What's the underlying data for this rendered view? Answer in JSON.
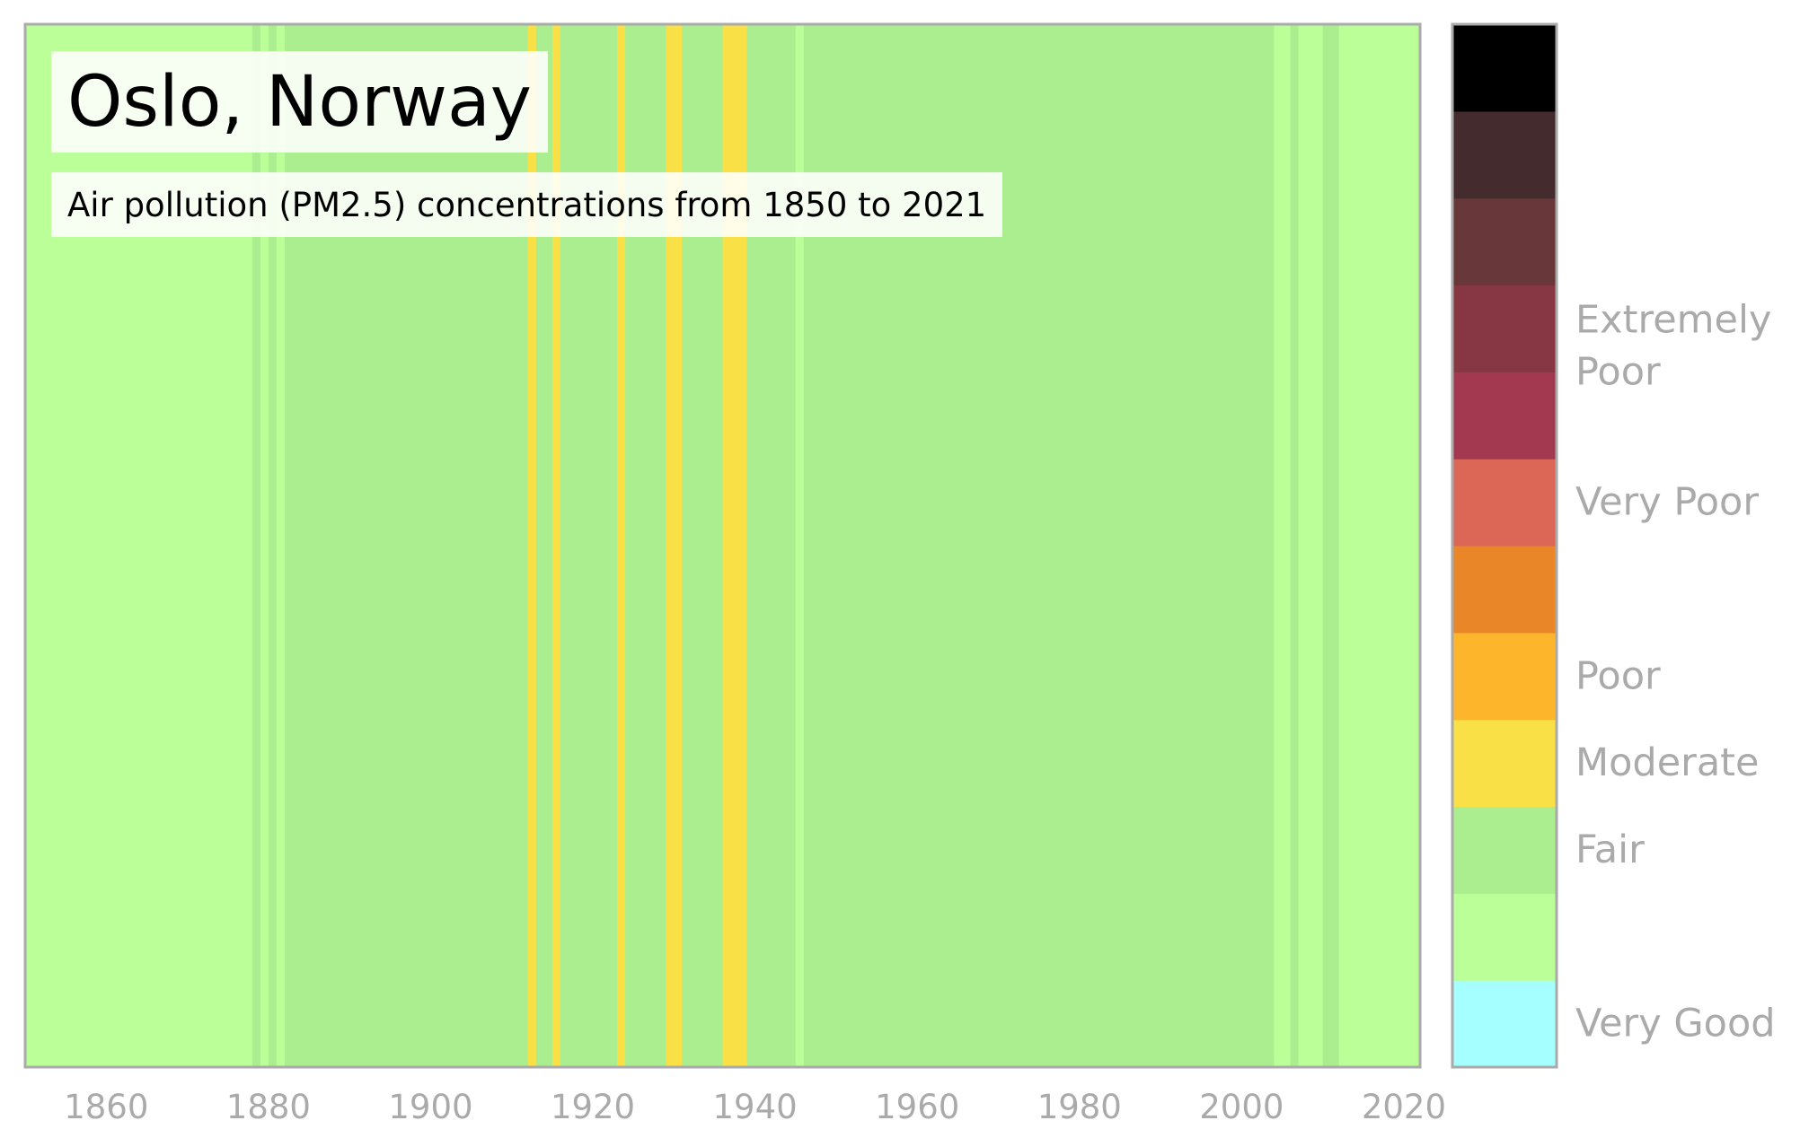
{
  "chart_data": {
    "type": "heatmap",
    "title": "Oslo, Norway",
    "subtitle": "Air pollution (PM2.5) concentrations from 1850 to 2021",
    "xlim": [
      1850,
      2022
    ],
    "x_ticks": [
      1860,
      1880,
      1900,
      1920,
      1940,
      1960,
      1980,
      2000,
      2020
    ],
    "color_scale": [
      {
        "level": 0,
        "color": "#a6ffff",
        "label": "Very Good"
      },
      {
        "level": 1,
        "color": "#bbff99",
        "label": ""
      },
      {
        "level": 2,
        "color": "#aaee8f",
        "label": "Fair"
      },
      {
        "level": 3,
        "color": "#f9e046",
        "label": "Moderate"
      },
      {
        "level": 4,
        "color": "#fdb52c",
        "label": "Poor"
      },
      {
        "level": 5,
        "color": "#e98728",
        "label": ""
      },
      {
        "level": 6,
        "color": "#dd6757",
        "label": "Very Poor"
      },
      {
        "level": 7,
        "color": "#a33950",
        "label": ""
      },
      {
        "level": 8,
        "color": "#873744",
        "label": "Extremely Poor"
      },
      {
        "level": 9,
        "color": "#67373a",
        "label": ""
      },
      {
        "level": 10,
        "color": "#442c2e",
        "label": ""
      },
      {
        "level": 11,
        "color": "#000000",
        "label": ""
      }
    ],
    "category_labels": [
      {
        "text_lines": [
          "Very Good"
        ],
        "level": 0.5
      },
      {
        "text_lines": [
          "Fair"
        ],
        "level": 2.5
      },
      {
        "text_lines": [
          "Moderate"
        ],
        "level": 3.5
      },
      {
        "text_lines": [
          "Poor"
        ],
        "level": 4.5
      },
      {
        "text_lines": [
          "Very Poor"
        ],
        "level": 6.5
      },
      {
        "text_lines": [
          "Extremely",
          "Poor"
        ],
        "level": 8.3
      }
    ],
    "periods": [
      {
        "start": 1850,
        "end": 1878,
        "level": 1
      },
      {
        "start": 1878,
        "end": 1879,
        "level": 2
      },
      {
        "start": 1879,
        "end": 1880,
        "level": 1
      },
      {
        "start": 1880,
        "end": 1881,
        "level": 2
      },
      {
        "start": 1881,
        "end": 1882,
        "level": 1
      },
      {
        "start": 1882,
        "end": 1912,
        "level": 2
      },
      {
        "start": 1912,
        "end": 1913,
        "level": 3
      },
      {
        "start": 1913,
        "end": 1915,
        "level": 2
      },
      {
        "start": 1915,
        "end": 1916,
        "level": 3
      },
      {
        "start": 1916,
        "end": 1923,
        "level": 2
      },
      {
        "start": 1923,
        "end": 1924,
        "level": 3
      },
      {
        "start": 1924,
        "end": 1929,
        "level": 2
      },
      {
        "start": 1929,
        "end": 1931,
        "level": 3
      },
      {
        "start": 1931,
        "end": 1936,
        "level": 2
      },
      {
        "start": 1936,
        "end": 1939,
        "level": 3
      },
      {
        "start": 1939,
        "end": 1945,
        "level": 2
      },
      {
        "start": 1945,
        "end": 1946,
        "level": 1
      },
      {
        "start": 1946,
        "end": 2004,
        "level": 2
      },
      {
        "start": 2004,
        "end": 2006,
        "level": 1
      },
      {
        "start": 2006,
        "end": 2007,
        "level": 2
      },
      {
        "start": 2007,
        "end": 2010,
        "level": 1
      },
      {
        "start": 2010,
        "end": 2012,
        "level": 2
      },
      {
        "start": 2012,
        "end": 2022,
        "level": 1
      }
    ]
  }
}
